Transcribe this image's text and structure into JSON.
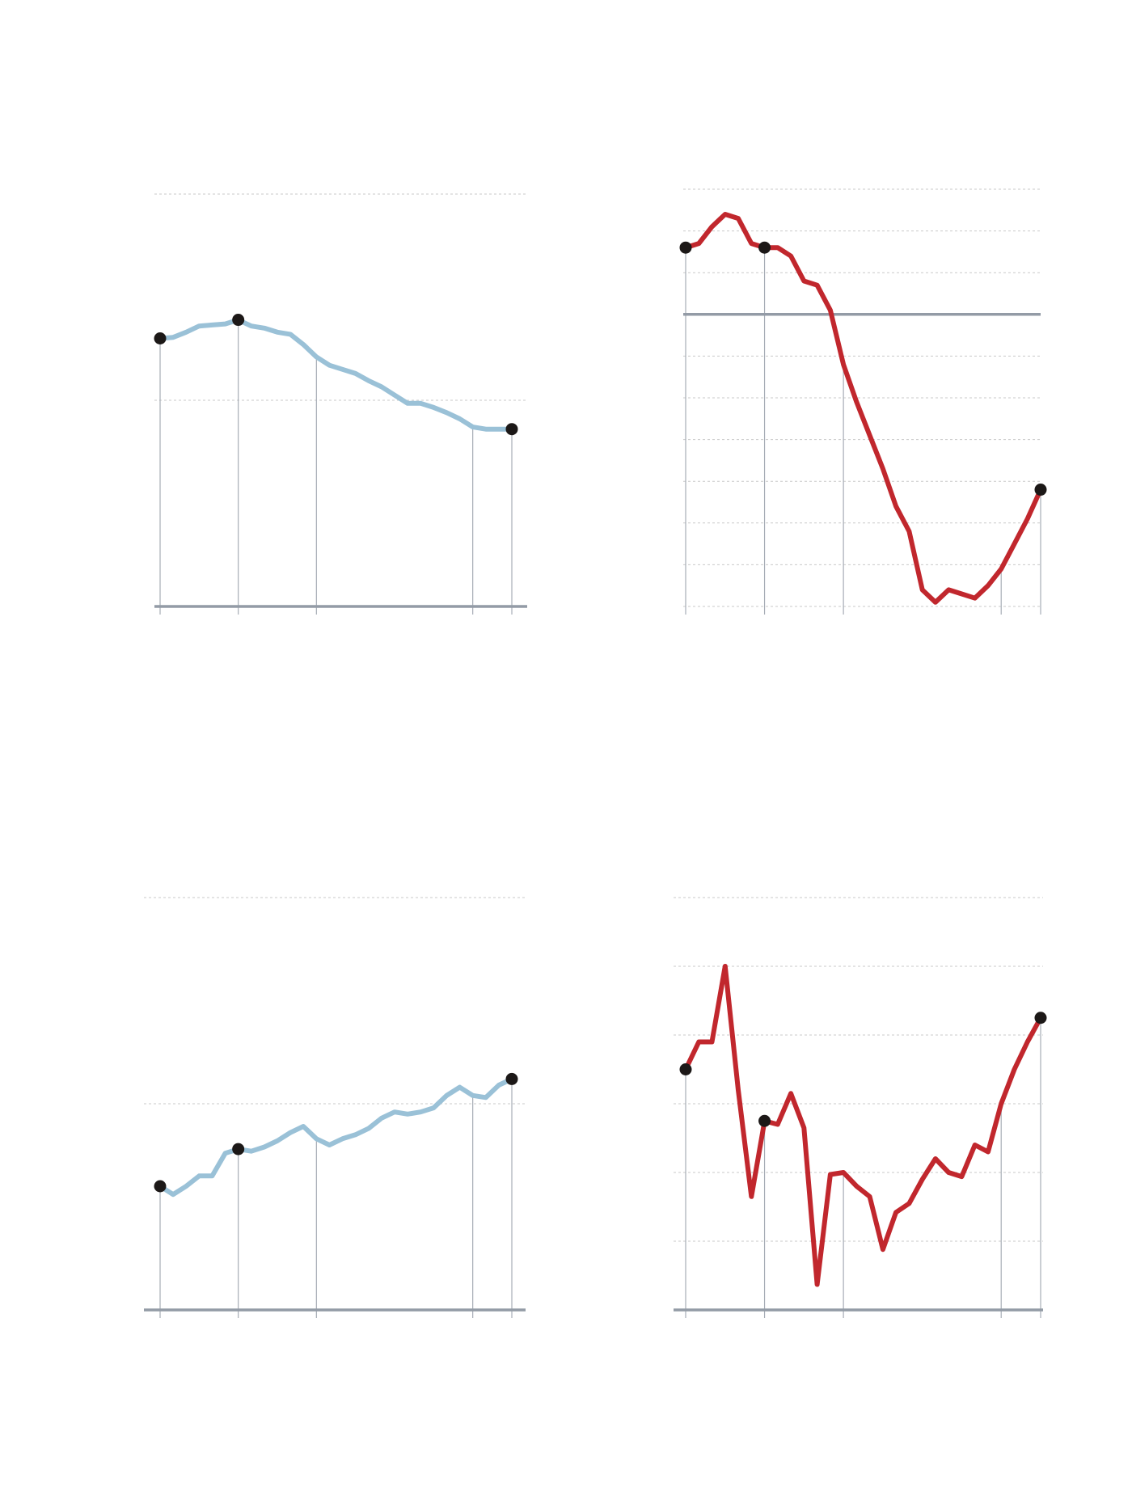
{
  "chart_data": [
    {
      "type": "line",
      "color": "#9ac1d7",
      "ylim": [
        0,
        200
      ],
      "y_gridlines": [
        100,
        200
      ],
      "baseline": 0,
      "x_marks": [
        0,
        12,
        24,
        48,
        54
      ],
      "highlight_x": [
        0,
        12,
        54
      ],
      "series": [
        {
          "x": [
            0,
            2,
            4,
            6,
            8,
            10,
            11,
            12,
            13,
            14,
            16,
            18,
            20,
            22,
            24,
            26,
            28,
            30,
            32,
            34,
            36,
            38,
            40,
            42,
            44,
            46,
            48,
            50,
            52,
            54
          ],
          "values": [
            130,
            130.5,
            133,
            136,
            136.5,
            137,
            138,
            139,
            137.5,
            136,
            135,
            133,
            132,
            127,
            121,
            117,
            115,
            113,
            109.5,
            106.5,
            102.5,
            98.5,
            98.5,
            96.5,
            94,
            91,
            87,
            86,
            86,
            86
          ]
        }
      ]
    },
    {
      "type": "line",
      "color": "#c1272d",
      "ylim": [
        -7,
        3
      ],
      "y_gridlines": [
        -7,
        -6,
        -5,
        -4,
        -3,
        -2,
        -1,
        0,
        1,
        2,
        3
      ],
      "baseline": 0,
      "x_marks": [
        0,
        12,
        24,
        48,
        54
      ],
      "highlight_x": [
        0,
        12,
        54
      ],
      "series": [
        {
          "x": [
            0,
            2,
            4,
            6,
            8,
            10,
            12,
            14,
            16,
            18,
            20,
            22,
            24,
            26,
            28,
            30,
            32,
            34,
            36,
            38,
            40,
            42,
            44,
            46,
            48,
            50,
            52,
            54
          ],
          "values": [
            1.6,
            1.7,
            2.1,
            2.4,
            2.3,
            1.7,
            1.6,
            1.6,
            1.4,
            0.8,
            0.7,
            0.1,
            -1.2,
            -2.1,
            -2.9,
            -3.7,
            -4.6,
            -5.2,
            -6.6,
            -6.9,
            -6.6,
            -6.7,
            -6.8,
            -6.5,
            -6.1,
            -5.5,
            -4.9,
            -4.2
          ]
        }
      ]
    },
    {
      "type": "line",
      "color": "#9ac1d7",
      "ylim": [
        0,
        200
      ],
      "y_gridlines": [
        100,
        200
      ],
      "baseline": 0,
      "x_marks": [
        0,
        12,
        24,
        48,
        54
      ],
      "highlight_x": [
        0,
        12,
        54
      ],
      "series": [
        {
          "x": [
            0,
            2,
            4,
            6,
            8,
            10,
            12,
            14,
            16,
            18,
            20,
            22,
            24,
            26,
            28,
            30,
            32,
            34,
            36,
            38,
            40,
            42,
            44,
            46,
            48,
            50,
            52,
            54
          ],
          "values": [
            60,
            56,
            60,
            65,
            65,
            76,
            78,
            77,
            79,
            82,
            86,
            89,
            83,
            80,
            83,
            85,
            88,
            93,
            96,
            95,
            96,
            98,
            104,
            108,
            104,
            103,
            109,
            112
          ]
        }
      ]
    },
    {
      "type": "line",
      "color": "#c1272d",
      "ylim": [
        0,
        6
      ],
      "y_gridlines": [
        1,
        2,
        3,
        4,
        5,
        6
      ],
      "baseline": 0,
      "x_marks": [
        0,
        12,
        24,
        48,
        54
      ],
      "highlight_x": [
        0,
        12,
        54
      ],
      "series": [
        {
          "x": [
            0,
            2,
            4,
            6,
            8,
            10,
            12,
            14,
            16,
            18,
            20,
            22,
            24,
            26,
            28,
            30,
            32,
            34,
            36,
            38,
            40,
            42,
            44,
            46,
            48,
            50,
            52,
            54
          ],
          "values": [
            3.5,
            3.9,
            3.9,
            5.0,
            3.2,
            1.65,
            2.75,
            2.7,
            3.15,
            2.65,
            0.37,
            1.97,
            2.0,
            1.8,
            1.65,
            0.88,
            1.42,
            1.55,
            1.9,
            2.2,
            2.0,
            1.94,
            2.4,
            2.3,
            3.0,
            3.5,
            3.9,
            4.25
          ]
        }
      ]
    }
  ]
}
